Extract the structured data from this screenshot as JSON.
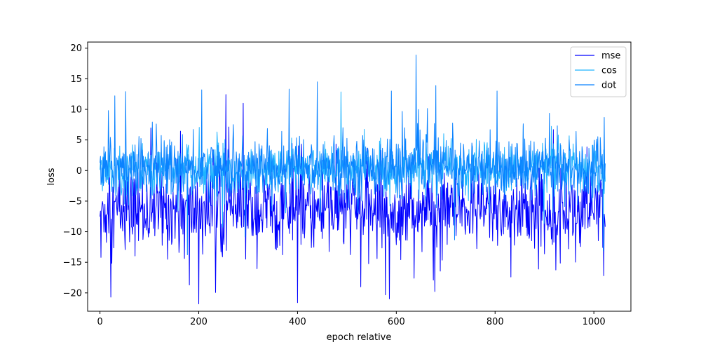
{
  "chart_data": {
    "type": "line",
    "title": "",
    "xlabel": "epoch relative",
    "ylabel": "loss",
    "xlim": [
      -25,
      1075
    ],
    "ylim": [
      -23,
      21
    ],
    "x_ticks": [
      0,
      200,
      400,
      600,
      800,
      1000
    ],
    "y_ticks": [
      -20,
      -15,
      -10,
      -5,
      0,
      5,
      10,
      15,
      20
    ],
    "grid": false,
    "legend_position": "upper right",
    "n_points": 1024,
    "series": [
      {
        "name": "mse",
        "color": "#0000ff",
        "style": "noisy",
        "mean": -6.5,
        "typical_range": [
          -13,
          -1
        ],
        "notable_points": [
          [
            2,
            -14.2
          ],
          [
            22,
            -20.7
          ],
          [
            200,
            -21.8
          ],
          [
            400,
            -21.6
          ],
          [
            528,
            -19.0
          ],
          [
            181,
            -18.7
          ],
          [
            832,
            -17.4
          ],
          [
            1020,
            -17.2
          ]
        ]
      },
      {
        "name": "cos",
        "color": "#1eb4ff",
        "style": "noisy",
        "mean": 0.3,
        "typical_range": [
          -3,
          4
        ],
        "notable_points": []
      },
      {
        "name": "dot",
        "color": "#0a82ff",
        "style": "noisy",
        "mean": 0.5,
        "typical_range": [
          -4,
          5
        ],
        "notable_points": [
          [
            640,
            18.9
          ],
          [
            440,
            14.5
          ],
          [
            206,
            13.2
          ],
          [
            680,
            13.9
          ],
          [
            30,
            12.2
          ],
          [
            52,
            12.9
          ],
          [
            590,
            13.0
          ],
          [
            804,
            13.0
          ],
          [
            17,
            9.8
          ]
        ]
      }
    ]
  }
}
